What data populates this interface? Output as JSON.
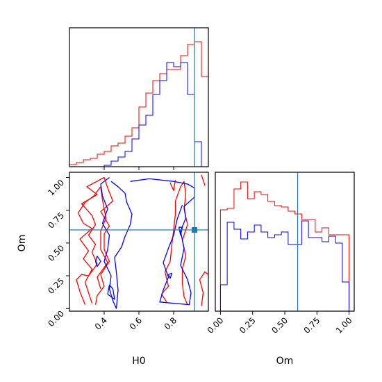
{
  "chart_data": [
    {
      "type": "histogram",
      "panel": "H0 marginal",
      "xlim": [
        0.2,
        1.0
      ],
      "truth": 0.92,
      "bins_x": [
        0.2,
        0.24,
        0.28,
        0.32,
        0.36,
        0.4,
        0.44,
        0.48,
        0.52,
        0.56,
        0.6,
        0.64,
        0.68,
        0.72,
        0.76,
        0.8,
        0.84,
        0.88,
        0.92,
        0.96,
        1.0
      ],
      "series": [
        {
          "color": "#ff0000",
          "values": [
            0.015,
            0.03,
            0.05,
            0.06,
            0.09,
            0.11,
            0.15,
            0.17,
            0.22,
            0.28,
            0.43,
            0.53,
            0.62,
            0.67,
            0.7,
            0.7,
            0.8,
            0.88,
            0.9,
            0.65
          ]
        },
        {
          "color": "#0000ff",
          "values": [
            0.0,
            0.0,
            0.0,
            0.0,
            0.0,
            0.01,
            0.04,
            0.07,
            0.11,
            0.2,
            0.3,
            0.37,
            0.52,
            0.62,
            0.75,
            0.72,
            0.75,
            0.52,
            0.18,
            0.0
          ]
        }
      ]
    },
    {
      "type": "histogram",
      "panel": "Om marginal",
      "xlim": [
        -0.04,
        1.04
      ],
      "truth": 0.6,
      "bins_x": [
        0.0,
        0.0526,
        0.1053,
        0.1579,
        0.2105,
        0.2632,
        0.3158,
        0.3684,
        0.4211,
        0.4737,
        0.5263,
        0.5789,
        0.6316,
        0.6842,
        0.7368,
        0.7895,
        0.8421,
        0.8947,
        0.9474,
        1.0
      ],
      "series": [
        {
          "color": "#ff0000",
          "values": [
            0.73,
            0.74,
            0.88,
            0.93,
            0.81,
            0.86,
            0.84,
            0.79,
            0.76,
            0.75,
            0.72,
            0.7,
            0.66,
            0.66,
            0.57,
            0.6,
            0.55,
            0.55,
            0.55
          ]
        },
        {
          "color": "#0000ff",
          "values": [
            0.19,
            0.64,
            0.59,
            0.52,
            0.57,
            0.62,
            0.57,
            0.53,
            0.55,
            0.57,
            0.48,
            0.48,
            0.65,
            0.53,
            0.53,
            0.5,
            0.54,
            0.49,
            0.21
          ]
        }
      ]
    },
    {
      "type": "contour",
      "panel": "Om vs H0",
      "xlim": [
        0.2,
        1.0
      ],
      "ylim": [
        -0.02,
        1.04
      ],
      "truth": {
        "x": 0.92,
        "y": 0.6
      },
      "series": [
        {
          "color": "#ff0000",
          "paths": [
            [
              [
                0.29,
                0.03
              ],
              [
                0.26,
                0.13
              ],
              [
                0.24,
                0.22
              ],
              [
                0.27,
                0.26
              ],
              [
                0.31,
                0.25
              ],
              [
                0.36,
                0.34
              ],
              [
                0.33,
                0.43
              ],
              [
                0.35,
                0.49
              ],
              [
                0.31,
                0.56
              ],
              [
                0.35,
                0.64
              ],
              [
                0.33,
                0.71
              ],
              [
                0.27,
                0.8
              ],
              [
                0.36,
                0.87
              ],
              [
                0.3,
                0.93
              ],
              [
                0.4,
                1.0
              ],
              [
                0.42,
                0.92
              ],
              [
                0.45,
                0.82
              ],
              [
                0.38,
                0.74
              ],
              [
                0.43,
                0.63
              ],
              [
                0.4,
                0.57
              ],
              [
                0.4,
                0.45
              ],
              [
                0.43,
                0.36
              ],
              [
                0.38,
                0.26
              ],
              [
                0.4,
                0.17
              ],
              [
                0.36,
                0.1
              ],
              [
                0.35,
                0.03
              ]
            ],
            [
              [
                0.33,
                0.04
              ],
              [
                0.31,
                0.12
              ],
              [
                0.29,
                0.2
              ],
              [
                0.33,
                0.3
              ],
              [
                0.28,
                0.38
              ],
              [
                0.31,
                0.44
              ],
              [
                0.26,
                0.53
              ],
              [
                0.33,
                0.61
              ],
              [
                0.28,
                0.65
              ],
              [
                0.25,
                0.73
              ],
              [
                0.29,
                0.81
              ],
              [
                0.34,
                0.86
              ],
              [
                0.38,
                0.93
              ],
              [
                0.39,
                0.83
              ],
              [
                0.41,
                0.69
              ],
              [
                0.38,
                0.59
              ],
              [
                0.38,
                0.45
              ],
              [
                0.42,
                0.35
              ],
              [
                0.36,
                0.24
              ],
              [
                0.38,
                0.15
              ]
            ],
            [
              [
                0.76,
                0.05
              ],
              [
                0.73,
                0.11
              ],
              [
                0.77,
                0.17
              ],
              [
                0.75,
                0.28
              ],
              [
                0.78,
                0.36
              ],
              [
                0.79,
                0.49
              ],
              [
                0.8,
                0.6
              ],
              [
                0.81,
                0.72
              ],
              [
                0.81,
                0.82
              ],
              [
                0.84,
                0.93
              ],
              [
                0.86,
                0.97
              ],
              [
                0.87,
                0.87
              ],
              [
                0.86,
                0.76
              ],
              [
                0.88,
                0.64
              ],
              [
                0.85,
                0.52
              ],
              [
                0.87,
                0.4
              ],
              [
                0.85,
                0.3
              ],
              [
                0.85,
                0.19
              ],
              [
                0.86,
                0.09
              ],
              [
                0.88,
                0.03
              ]
            ],
            [
              [
                0.96,
                0.02
              ],
              [
                0.97,
                0.12
              ],
              [
                0.95,
                0.22
              ],
              [
                0.98,
                0.28
              ],
              [
                1.0,
                0.26
              ]
            ],
            [
              [
                0.78,
                0.96
              ],
              [
                0.8,
                0.9
              ],
              [
                0.81,
                0.98
              ]
            ],
            [
              [
                0.98,
                0.94
              ],
              [
                0.96,
                1.02
              ]
            ]
          ]
        },
        {
          "color": "#0000ff",
          "paths": [
            [
              [
                0.43,
                1.0
              ],
              [
                0.38,
                0.95
              ],
              [
                0.39,
                0.86
              ],
              [
                0.42,
                0.76
              ],
              [
                0.39,
                0.65
              ],
              [
                0.43,
                0.56
              ],
              [
                0.42,
                0.45
              ],
              [
                0.4,
                0.36
              ],
              [
                0.44,
                0.25
              ],
              [
                0.43,
                0.15
              ],
              [
                0.45,
                0.06
              ],
              [
                0.47,
                0.0
              ],
              [
                0.48,
                0.14
              ],
              [
                0.47,
                0.28
              ],
              [
                0.46,
                0.39
              ],
              [
                0.5,
                0.47
              ],
              [
                0.52,
                0.55
              ],
              [
                0.55,
                0.64
              ],
              [
                0.56,
                0.72
              ],
              [
                0.53,
                0.81
              ],
              [
                0.52,
                0.88
              ],
              [
                0.48,
                0.93
              ],
              [
                0.44,
                0.97
              ]
            ],
            [
              [
                0.55,
                0.97
              ],
              [
                0.66,
                0.99
              ],
              [
                0.8,
                0.97
              ],
              [
                0.88,
                0.95
              ],
              [
                0.92,
                0.92
              ],
              [
                0.92,
                0.85
              ],
              [
                0.86,
                0.78
              ],
              [
                0.87,
                0.69
              ],
              [
                0.84,
                0.59
              ],
              [
                0.86,
                0.46
              ],
              [
                0.84,
                0.33
              ],
              [
                0.88,
                0.22
              ],
              [
                0.9,
                0.12
              ],
              [
                0.89,
                0.03
              ],
              [
                0.8,
                0.04
              ],
              [
                0.72,
                0.05
              ],
              [
                0.74,
                0.14
              ],
              [
                0.77,
                0.24
              ],
              [
                0.74,
                0.35
              ],
              [
                0.77,
                0.46
              ],
              [
                0.8,
                0.56
              ],
              [
                0.82,
                0.68
              ],
              [
                0.85,
                0.79
              ]
            ],
            [
              [
                0.35,
                0.36
              ],
              [
                0.36,
                0.32
              ],
              [
                0.38,
                0.36
              ],
              [
                0.36,
                0.4
              ],
              [
                0.35,
                0.36
              ]
            ],
            [
              [
                0.43,
                0.18
              ],
              [
                0.42,
                0.11
              ],
              [
                0.46,
                0.07
              ],
              [
                0.45,
                0.15
              ],
              [
                0.43,
                0.18
              ]
            ],
            [
              [
                0.77,
                0.26
              ],
              [
                0.78,
                0.23
              ],
              [
                0.79,
                0.27
              ],
              [
                0.77,
                0.26
              ]
            ],
            [
              [
                0.83,
                0.62
              ],
              [
                0.84,
                0.56
              ],
              [
                0.85,
                0.62
              ],
              [
                0.83,
                0.62
              ]
            ]
          ]
        }
      ]
    }
  ],
  "axes": {
    "h0_ticks": [
      "0.4",
      "0.6",
      "0.8"
    ],
    "h0_tick_values": [
      0.4,
      0.6,
      0.8
    ],
    "om_ticks_y": [
      "0.00",
      "0.25",
      "0.50",
      "0.75",
      "1.00"
    ],
    "om_ticks_x": [
      "0.00",
      "0.25",
      "0.50",
      "0.75",
      "1.00"
    ],
    "om_tick_values": [
      0.0,
      0.25,
      0.5,
      0.75,
      1.0
    ],
    "xlabel_h0": "H0",
    "xlabel_om": "Om",
    "ylabel_om": "Om"
  },
  "colors": {
    "red": "#ff0000",
    "blue": "#0000ff",
    "truth": "#1f77b4"
  }
}
